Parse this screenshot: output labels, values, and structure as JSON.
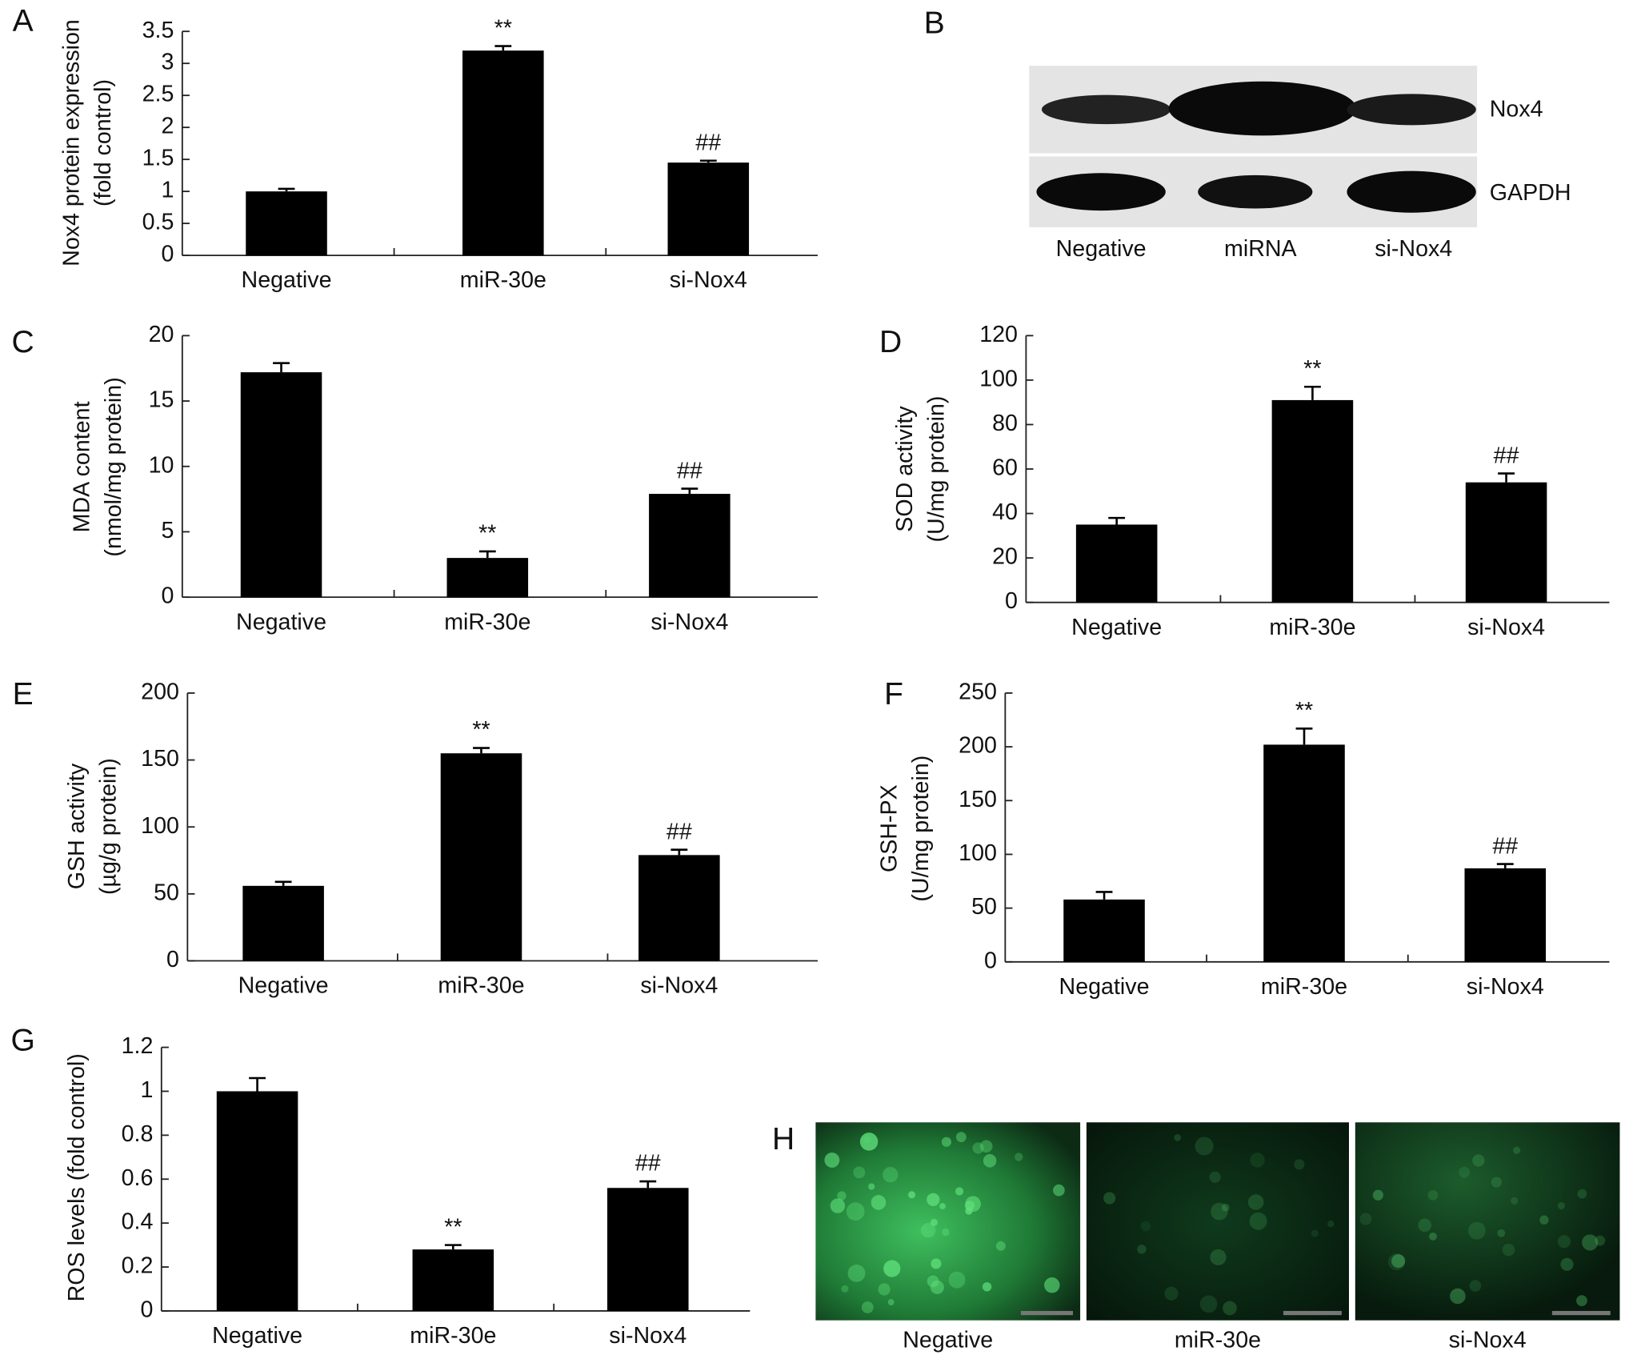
{
  "chart_data": [
    {
      "type": "bar",
      "panel": "A",
      "ylabel": [
        "Nox4 protein expression",
        "(fold control)"
      ],
      "categories": [
        "Negative",
        "miR-30e",
        "si-Nox4"
      ],
      "values": [
        1.0,
        3.2,
        1.45
      ],
      "errors": [
        0.04,
        0.07,
        0.03
      ],
      "annotations": [
        null,
        "**",
        "##"
      ],
      "color": "#000000",
      "ylim": [
        0,
        3.5
      ],
      "yticks": [
        0,
        0.5,
        1,
        1.5,
        2,
        2.5,
        3,
        3.5
      ]
    },
    {
      "type": "bar",
      "panel": "C",
      "ylabel": [
        "MDA content",
        "(nmol/mg protein)"
      ],
      "categories": [
        "Negative",
        "miR-30e",
        "si-Nox4"
      ],
      "values": [
        17.2,
        3.0,
        7.9
      ],
      "errors": [
        0.7,
        0.5,
        0.4
      ],
      "annotations": [
        null,
        "**",
        "##"
      ],
      "color": "#000000",
      "ylim": [
        0,
        20
      ],
      "yticks": [
        0,
        5,
        10,
        15,
        20
      ]
    },
    {
      "type": "bar",
      "panel": "D",
      "ylabel": [
        "SOD activity",
        "(U/mg protein)"
      ],
      "categories": [
        "Negative",
        "miR-30e",
        "si-Nox4"
      ],
      "values": [
        35,
        91,
        54
      ],
      "errors": [
        3,
        6,
        4
      ],
      "annotations": [
        null,
        "**",
        "##"
      ],
      "color": "#000000",
      "ylim": [
        0,
        120
      ],
      "yticks": [
        0,
        20,
        40,
        60,
        80,
        100,
        120
      ]
    },
    {
      "type": "bar",
      "panel": "E",
      "ylabel": [
        "GSH activity",
        "(µg/g protein)"
      ],
      "categories": [
        "Negative",
        "miR-30e",
        "si-Nox4"
      ],
      "values": [
        56,
        155,
        79
      ],
      "errors": [
        3,
        4,
        4
      ],
      "annotations": [
        null,
        "**",
        "##"
      ],
      "color": "#000000",
      "ylim": [
        0,
        200
      ],
      "yticks": [
        0,
        50,
        100,
        150,
        200
      ]
    },
    {
      "type": "bar",
      "panel": "F",
      "ylabel": [
        "GSH-PX",
        "(U/mg protein)"
      ],
      "categories": [
        "Negative",
        "miR-30e",
        "si-Nox4"
      ],
      "values": [
        58,
        202,
        87
      ],
      "errors": [
        7,
        15,
        4
      ],
      "annotations": [
        null,
        "**",
        "##"
      ],
      "color": "#000000",
      "ylim": [
        0,
        250
      ],
      "yticks": [
        0,
        50,
        100,
        150,
        200,
        250
      ]
    },
    {
      "type": "bar",
      "panel": "G",
      "ylabel": [
        "ROS levels (fold control)"
      ],
      "categories": [
        "Negative",
        "miR-30e",
        "si-Nox4"
      ],
      "values": [
        1.0,
        0.28,
        0.56
      ],
      "errors": [
        0.06,
        0.02,
        0.03
      ],
      "annotations": [
        null,
        "**",
        "##"
      ],
      "color": "#000000",
      "ylim": [
        0,
        1.2
      ],
      "yticks": [
        0,
        0.2,
        0.4,
        0.6,
        0.8,
        1,
        1.2
      ]
    }
  ],
  "blot": {
    "panel": "B",
    "bands": [
      "Nox4",
      "GAPDH"
    ],
    "lanes": [
      "Negative",
      "miRNA",
      "si-Nox4"
    ]
  },
  "micrographs": {
    "panel": "H",
    "labels": [
      "Negative",
      "miR-30e",
      "si-Nox4"
    ]
  }
}
